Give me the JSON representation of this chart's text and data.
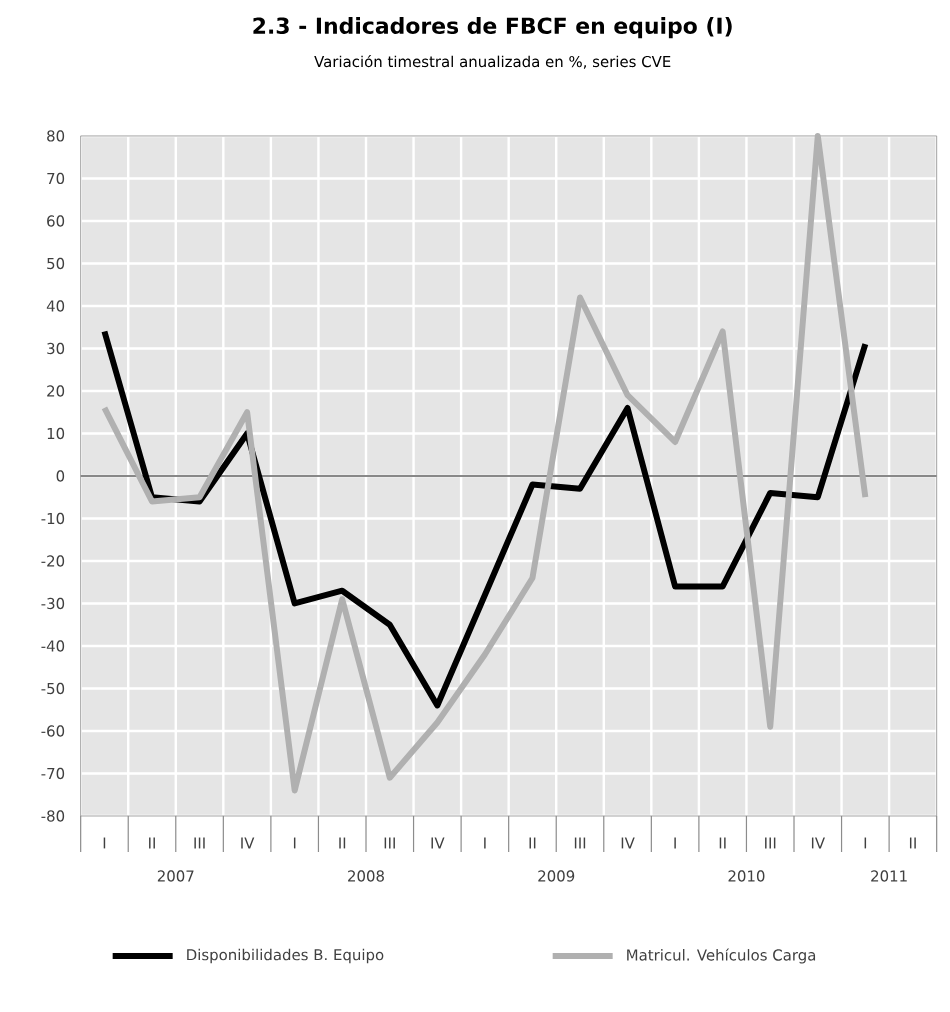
{
  "chart_data": {
    "type": "line",
    "title": "2.3 - Indicadores de FBCF en equipo (I)",
    "subtitle": "Variación timestral anualizada en %, series CVE",
    "categories": [
      "I",
      "II",
      "III",
      "IV",
      "I",
      "II",
      "III",
      "IV",
      "I",
      "II",
      "III",
      "IV",
      "I",
      "II",
      "III",
      "IV",
      "I",
      "II"
    ],
    "series": [
      {
        "name": "Disponibilidades B. Equipo",
        "color": "#000000",
        "values": [
          34,
          -5,
          -6,
          10,
          -30,
          -27,
          -35,
          -54,
          -28,
          -2,
          -3,
          16,
          -26,
          -26,
          -4,
          -5,
          31,
          null
        ]
      },
      {
        "name": "Matricul. Vehículos Carga",
        "color": "#b0b0b0",
        "values": [
          16,
          -6,
          -5,
          15,
          -74,
          -29,
          -71,
          -58,
          -42,
          -24,
          42,
          19,
          8,
          34,
          -59,
          80,
          -5,
          null
        ]
      }
    ],
    "ylim": [
      -80,
      80
    ],
    "yticks": [
      -80,
      -70,
      -60,
      -50,
      -40,
      -30,
      -20,
      -10,
      0,
      10,
      20,
      30,
      40,
      50,
      60,
      70,
      80
    ],
    "ref_lines": [
      {
        "axis": "y",
        "value": 0,
        "color": "#888888"
      }
    ],
    "annotations": [
      "2007",
      "2008",
      "2009",
      "2010",
      "2011"
    ],
    "grid": true,
    "legend": "bottom",
    "marker": "none",
    "line_style": "solid"
  }
}
